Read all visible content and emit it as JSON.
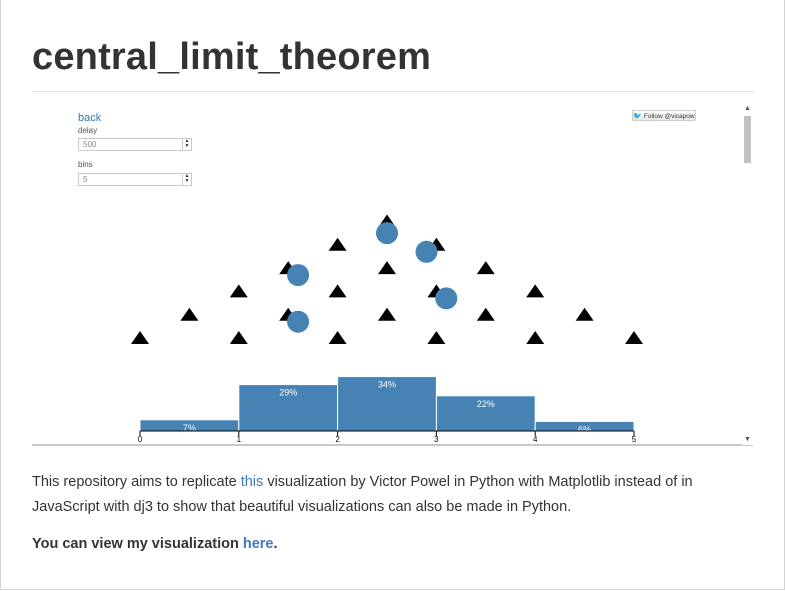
{
  "page": {
    "title": "central_limit_theorem",
    "description_before": "This repository aims to replicate ",
    "description_link": "this",
    "description_after": " visualization by Victor Powel in Python with Matplotlib instead of in JavaScript with dj3 to show that beautiful visualizations can also be made in Python.",
    "view_before": "You can view my visualization ",
    "view_link": "here",
    "view_after": "."
  },
  "embed": {
    "back_label": "back",
    "delay_label": "delay",
    "delay_value": "500",
    "bins_label": "bins",
    "bins_value": "5",
    "follow_label": "Follow @vicapow",
    "colors": {
      "accent": "#4682b4",
      "link": "#2e7bb5"
    }
  },
  "chart_data": {
    "type": "bar",
    "x_ticks": [
      "0",
      "1",
      "2",
      "3",
      "4",
      "5"
    ],
    "xlim": [
      0,
      5
    ],
    "bins": [
      {
        "start": 0,
        "end": 1,
        "percent": 7,
        "label": "7%"
      },
      {
        "start": 1,
        "end": 2,
        "percent": 29,
        "label": "29%"
      },
      {
        "start": 2,
        "end": 3,
        "percent": 34,
        "label": "34%"
      },
      {
        "start": 3,
        "end": 4,
        "percent": 22,
        "label": "22%"
      },
      {
        "start": 4,
        "end": 5,
        "percent": 6,
        "label": "6%"
      }
    ],
    "pegs": [
      {
        "x": 2.5,
        "row": 5
      },
      {
        "x": 2.0,
        "row": 4
      },
      {
        "x": 3.0,
        "row": 4
      },
      {
        "x": 1.5,
        "row": 3
      },
      {
        "x": 2.5,
        "row": 3
      },
      {
        "x": 3.5,
        "row": 3
      },
      {
        "x": 1.0,
        "row": 2
      },
      {
        "x": 2.0,
        "row": 2
      },
      {
        "x": 3.0,
        "row": 2
      },
      {
        "x": 4.0,
        "row": 2
      },
      {
        "x": 0.5,
        "row": 1
      },
      {
        "x": 1.5,
        "row": 1
      },
      {
        "x": 2.5,
        "row": 1
      },
      {
        "x": 3.5,
        "row": 1
      },
      {
        "x": 4.5,
        "row": 1
      },
      {
        "x": 0.0,
        "row": 0
      },
      {
        "x": 1.0,
        "row": 0
      },
      {
        "x": 2.0,
        "row": 0
      },
      {
        "x": 3.0,
        "row": 0
      },
      {
        "x": 4.0,
        "row": 0
      },
      {
        "x": 5.0,
        "row": 0
      }
    ],
    "balls": [
      {
        "x": 2.5,
        "row": 4.5
      },
      {
        "x": 2.9,
        "row": 3.7
      },
      {
        "x": 1.6,
        "row": 2.7
      },
      {
        "x": 3.1,
        "row": 1.7
      },
      {
        "x": 1.6,
        "row": 0.7
      }
    ]
  }
}
